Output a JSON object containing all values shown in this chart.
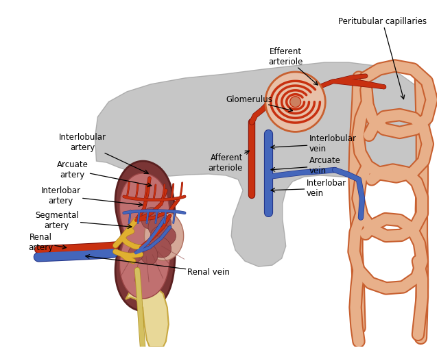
{
  "background_color": "#ffffff",
  "labels": {
    "peritubular_capillaries": "Peritubular capillaries",
    "efferent_arteriole": "Efferent\narteriole",
    "glomerulus": "Glomerulus",
    "afferent_arteriole": "Afferent\narteriole",
    "interlobular_artery": "Interlobular\nartery",
    "arcuate_artery": "Arcuate\nartery",
    "interlobar_artery": "Interlobar\nartery",
    "segmental_artery": "Segmental\nartery",
    "renal_artery": "Renal\nartery",
    "interlobular_vein": "Interlobular\nvein",
    "arcuate_vein": "Arcuate\nvein",
    "interlobar_vein": "Interlobar\nvein",
    "renal_vein": "Renal vein"
  },
  "colors": {
    "artery": "#c83010",
    "vein": "#4466bb",
    "kidney_outer": "#7a3838",
    "kidney_inner": "#b86060",
    "kidney_cortex": "#c07878",
    "kidney_pelvis": "#d4a0a0",
    "gray_bg": "#c0c0c0",
    "peritubular_fill": "#e8b08a",
    "peritubular_edge": "#c86030",
    "bone_fill": "#e8d898",
    "bone_edge": "#c8a840",
    "gold": "#e0b030",
    "gold_dark": "#b08020",
    "text": "#000000"
  }
}
